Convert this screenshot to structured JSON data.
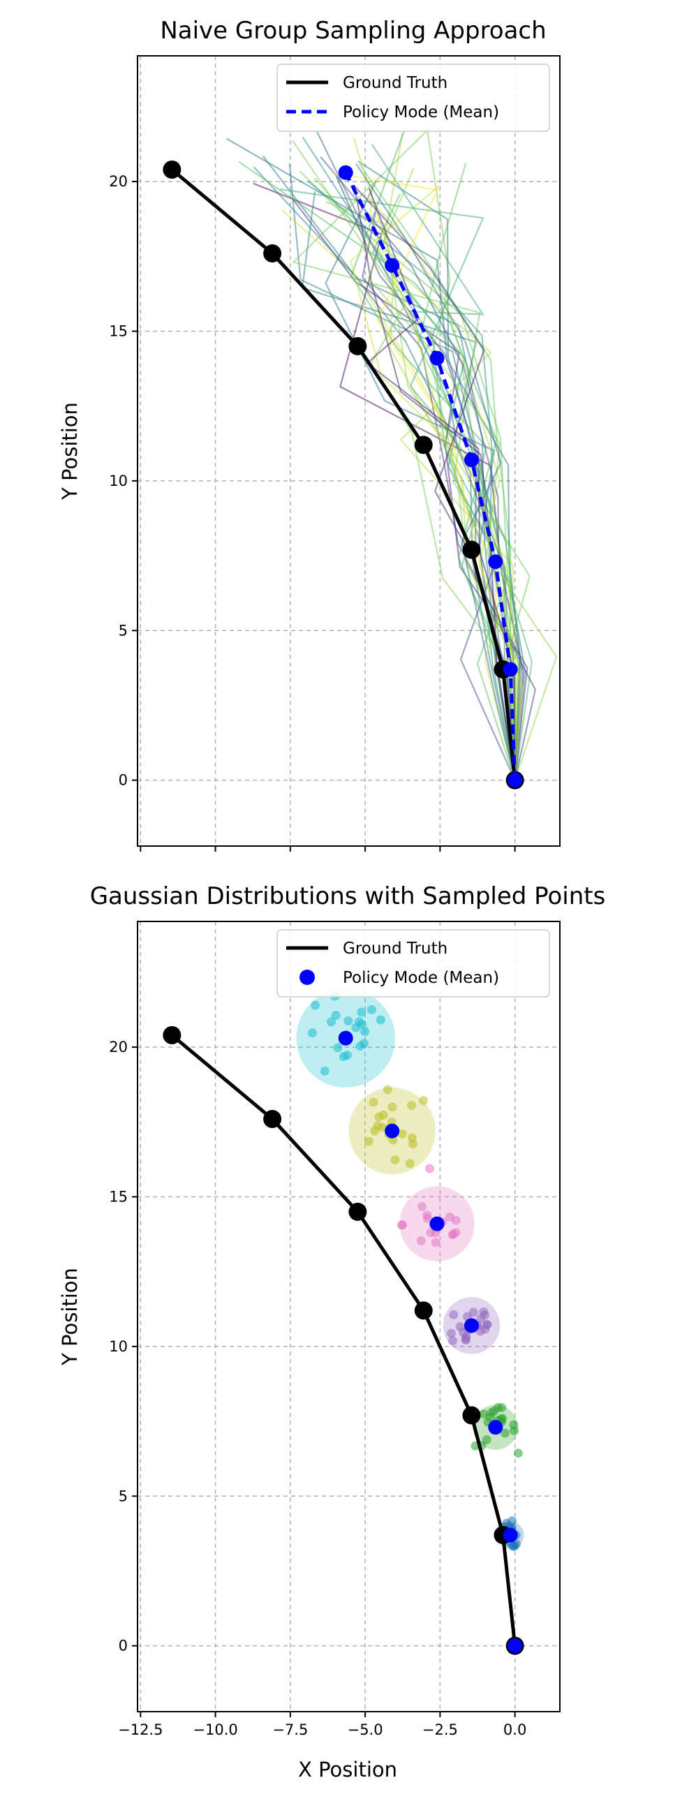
{
  "chart_data": [
    {
      "type": "line",
      "title": "Naive Group Sampling Approach",
      "xlabel": "",
      "ylabel": "Y Position",
      "xlim": [
        -12.6,
        1.5
      ],
      "ylim": [
        -2.2,
        24.2
      ],
      "xticks": [
        -12.5,
        -10.0,
        -7.5,
        -5.0,
        -2.5,
        0.0
      ],
      "yticks": [
        0,
        5,
        10,
        15,
        20
      ],
      "ytick_labels": [
        "0",
        "5",
        "10",
        "15",
        "20"
      ],
      "grid": true,
      "legend_position": "upper right",
      "legend": [
        "Ground Truth",
        "Policy Mode (Mean)"
      ],
      "series": [
        {
          "name": "Ground Truth",
          "style": "solid",
          "color": "#000000",
          "x": [
            0.0,
            -0.4,
            -1.45,
            -3.05,
            -5.25,
            -8.1,
            -11.45
          ],
          "y": [
            0.0,
            3.7,
            7.7,
            11.2,
            14.5,
            17.6,
            20.4
          ]
        },
        {
          "name": "Policy Mode (Mean)",
          "style": "dashed",
          "color": "#0000ff",
          "x": [
            0.0,
            -0.15,
            -0.65,
            -1.45,
            -2.6,
            -4.1,
            -5.65
          ],
          "y": [
            0.0,
            3.7,
            7.3,
            10.7,
            14.1,
            17.2,
            20.3
          ]
        }
      ],
      "sampled_trajectories": {
        "count": 40,
        "colormap": "viridis",
        "alpha": 0.5
      }
    },
    {
      "type": "scatter",
      "title": "Gaussian Distributions with Sampled Points",
      "xlabel": "X Position",
      "ylabel": "Y Position",
      "xlim": [
        -12.6,
        1.5
      ],
      "ylim": [
        -2.2,
        24.2
      ],
      "xticks": [
        -12.5,
        -10.0,
        -7.5,
        -5.0,
        -2.5,
        0.0
      ],
      "xtick_labels": [
        "−12.5",
        "−10.0",
        "−7.5",
        "−5.0",
        "−2.5",
        "0.0"
      ],
      "yticks": [
        0,
        5,
        10,
        15,
        20
      ],
      "ytick_labels": [
        "0",
        "5",
        "10",
        "15",
        "20"
      ],
      "grid": true,
      "legend_position": "upper right",
      "legend": [
        "Ground Truth",
        "Policy Mode (Mean)"
      ],
      "series": [
        {
          "name": "Ground Truth",
          "style": "solid",
          "color": "#000000",
          "x": [
            0.0,
            -0.4,
            -1.45,
            -3.05,
            -5.25,
            -8.1,
            -11.45
          ],
          "y": [
            0.0,
            3.7,
            7.7,
            11.2,
            14.5,
            17.6,
            20.4
          ]
        },
        {
          "name": "Policy Mode (Mean)",
          "style": "marker",
          "color": "#0000ff",
          "x": [
            0.0,
            -0.15,
            -0.65,
            -1.45,
            -2.6,
            -4.1,
            -5.65
          ],
          "y": [
            0.0,
            3.7,
            7.3,
            10.7,
            14.1,
            17.2,
            20.3
          ]
        }
      ],
      "gaussians": [
        {
          "center": [
            -0.15,
            3.7
          ],
          "radius": 0.45,
          "color": "#1f77b4"
        },
        {
          "center": [
            -0.65,
            7.3
          ],
          "radius": 0.75,
          "color": "#2ca02c"
        },
        {
          "center": [
            -1.45,
            10.7
          ],
          "radius": 0.95,
          "color": "#9467bd"
        },
        {
          "center": [
            -2.6,
            14.1
          ],
          "radius": 1.25,
          "color": "#e377c2"
        },
        {
          "center": [
            -4.1,
            17.2
          ],
          "radius": 1.45,
          "color": "#bcbd22"
        },
        {
          "center": [
            -5.65,
            20.3
          ],
          "radius": 1.65,
          "color": "#17becf"
        }
      ],
      "points_per_gaussian": 20
    }
  ]
}
